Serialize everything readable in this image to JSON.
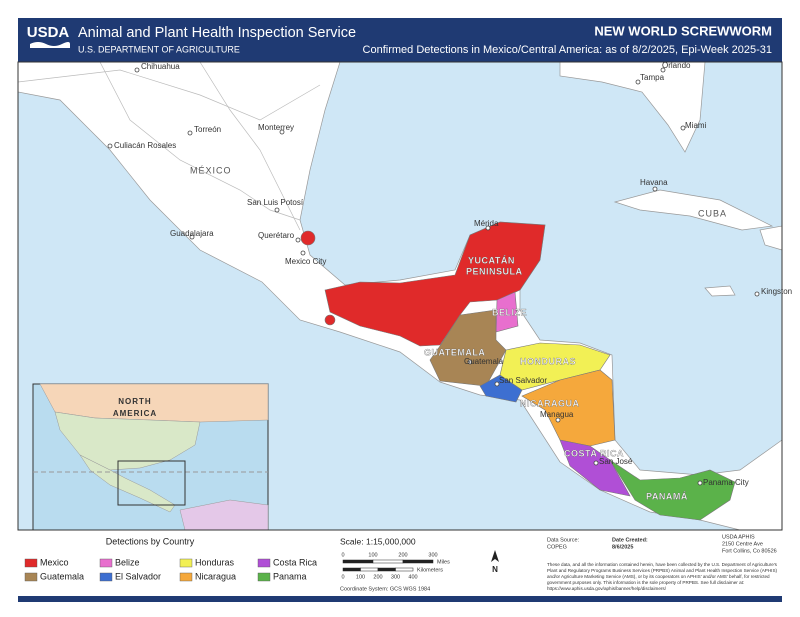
{
  "header": {
    "logo": "USDA",
    "agency": "Animal and Plant Health Inspection Service",
    "department": "U.S. DEPARTMENT OF AGRICULTURE",
    "title": "NEW WORLD SCREWWORM",
    "subtitle": "Confirmed Detections in Mexico/Central America: as of 8/2/2025, Epi-Week 2025-31"
  },
  "map": {
    "labels": [
      "Chihuahua",
      "Orlando",
      "Tampa",
      "Torreón",
      "Monterrey",
      "Miami",
      "Culiacán Rosales",
      "MÉXICO",
      "Havana",
      "CUBA",
      "San Luis Potosí",
      "Mérida",
      "Guadalajara",
      "Querétaro",
      "Mexico City",
      "YUCATÁN",
      "PENINSULA",
      "BELIZE",
      "Kingston",
      "GUATEMALA",
      "Guatemala",
      "HONDURAS",
      "San Salvador",
      "NICARAGUA",
      "Managua",
      "COSTA RICA",
      "San José",
      "PANAMÁ",
      "Panama City"
    ]
  },
  "inset": {
    "label_1": "NORTH",
    "label_2": "AMERICA"
  },
  "legend": {
    "title": "Detections by Country",
    "items": [
      {
        "name": "Mexico",
        "color": "#e02a2a"
      },
      {
        "name": "Belize",
        "color": "#e86fce"
      },
      {
        "name": "Honduras",
        "color": "#f2f055"
      },
      {
        "name": "Costa Rica",
        "color": "#b04fd6"
      },
      {
        "name": "Guatemala",
        "color": "#a88555"
      },
      {
        "name": "El Salvador",
        "color": "#3d6fd1"
      },
      {
        "name": "Nicaragua",
        "color": "#f5a83c"
      },
      {
        "name": "Panama",
        "color": "#5bb24a"
      }
    ]
  },
  "scale": {
    "text": "Scale: 1:15,000,000",
    "miles_ticks": [
      "0",
      "100",
      "200",
      "300"
    ],
    "miles_unit": "Miles",
    "km_ticks": [
      "0",
      "100",
      "200",
      "300",
      "400"
    ],
    "km_unit": "Kilometers",
    "coordinate_system": "Coordinate System: GCS WGS 1984",
    "north": "N"
  },
  "footer": {
    "data_source_label": "Data Source:",
    "data_source": "COPEG",
    "date_created_label": "Date Created:",
    "date_created": "8/6/2025",
    "address": [
      "USDA APHIS",
      "2150 Centre Ave",
      "Fort Collins, Co 80526"
    ],
    "disclaimer": "These data, and all the information contained herein, have been collected by the U.S. Department of Agriculture's Plant and Regulatory Programs Business Services (PRPBS) Animal and Plant Health Inspection Service (APHIS) and/or Agriculture Marketing Service (AMS), or by its cooperators on APHIS' and/or AMS' behalf, for restricted government purposes only. This information is the sole property of PRPBS. See full disclaimer at: https://www.aphis.usda.gov/aphis/banner/help/disclaimers/"
  }
}
